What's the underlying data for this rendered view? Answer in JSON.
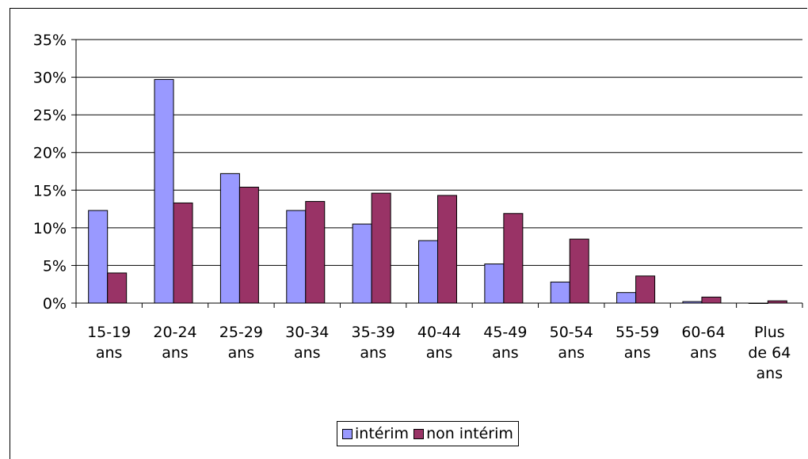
{
  "chart_data": {
    "type": "bar",
    "categories": [
      [
        "15-19",
        "ans"
      ],
      [
        "20-24",
        "ans"
      ],
      [
        "25-29",
        "ans"
      ],
      [
        "30-34",
        "ans"
      ],
      [
        "35-39",
        "ans"
      ],
      [
        "40-44",
        "ans"
      ],
      [
        "45-49",
        "ans"
      ],
      [
        "50-54",
        "ans"
      ],
      [
        "55-59",
        "ans"
      ],
      [
        "60-64",
        "ans"
      ],
      [
        "Plus",
        "de 64",
        "ans"
      ]
    ],
    "series": [
      {
        "name": "intérim",
        "color": "#9999FF",
        "values": [
          12.3,
          29.7,
          17.2,
          12.3,
          10.5,
          8.3,
          5.2,
          2.8,
          1.4,
          0.2,
          0.0
        ]
      },
      {
        "name": "non intérim",
        "color": "#993366",
        "values": [
          4.0,
          13.3,
          15.4,
          13.5,
          14.6,
          14.3,
          11.9,
          8.5,
          3.6,
          0.8,
          0.3
        ]
      }
    ],
    "ylim": [
      0,
      35
    ],
    "yticks": [
      0,
      5,
      10,
      15,
      20,
      25,
      30,
      35
    ],
    "ytick_labels": [
      "0%",
      "5%",
      "10%",
      "15%",
      "20%",
      "25%",
      "30%",
      "35%"
    ],
    "grid": true,
    "legend_position": "bottom"
  }
}
